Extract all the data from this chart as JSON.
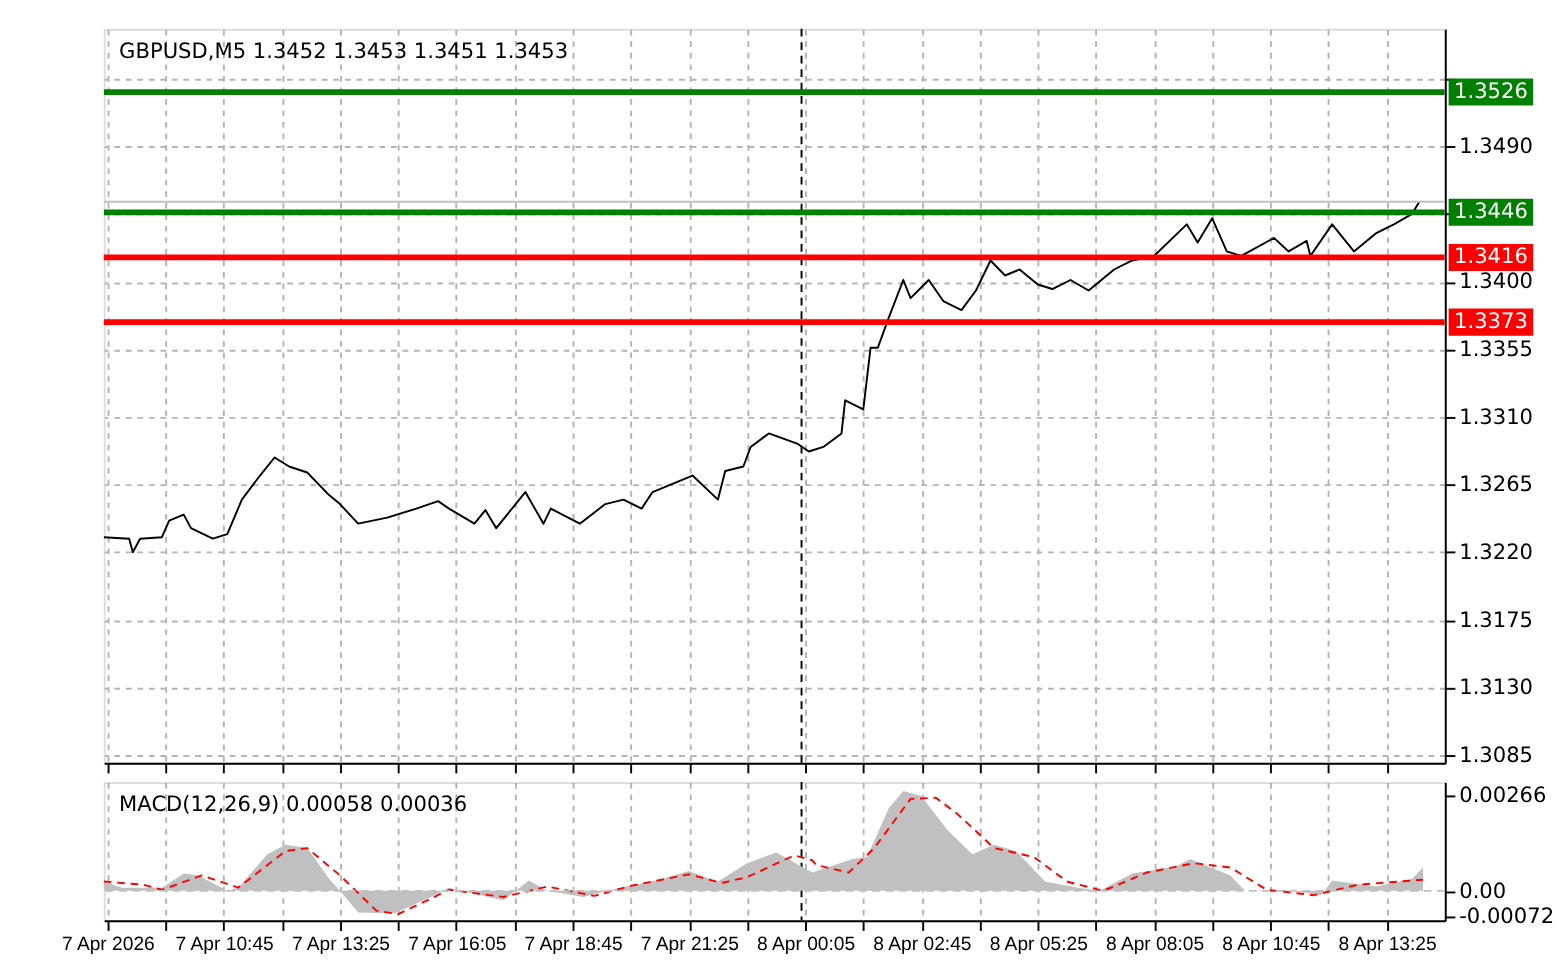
{
  "chart_data": [
    {
      "type": "line",
      "title": "GBPUSD,M5  1.3452 1.3453 1.3451 1.3453",
      "color": "#000000",
      "x": [
        "2026-04-07T08:00",
        "2026-04-07T08:35",
        "2026-04-07T08:40",
        "2026-04-07T08:50",
        "2026-04-07T09:20",
        "2026-04-07T09:30",
        "2026-04-07T09:50",
        "2026-04-07T10:00",
        "2026-04-07T10:30",
        "2026-04-07T10:50",
        "2026-04-07T11:10",
        "2026-04-07T11:35",
        "2026-04-07T11:55",
        "2026-04-07T12:15",
        "2026-04-07T12:40",
        "2026-04-07T13:10",
        "2026-04-07T13:25",
        "2026-04-07T13:50",
        "2026-04-07T14:30",
        "2026-04-07T15:10",
        "2026-04-07T15:40",
        "2026-04-07T15:55",
        "2026-04-07T16:30",
        "2026-04-07T16:45",
        "2026-04-07T17:00",
        "2026-04-07T17:40",
        "2026-04-07T18:05",
        "2026-04-07T18:15",
        "2026-04-07T18:55",
        "2026-04-07T19:30",
        "2026-04-07T19:55",
        "2026-04-07T20:20",
        "2026-04-07T20:35",
        "2026-04-07T21:15",
        "2026-04-07T21:30",
        "2026-04-07T22:05",
        "2026-04-07T22:15",
        "2026-04-07T22:40",
        "2026-04-07T22:50",
        "2026-04-07T23:15",
        "2026-04-07T23:55",
        "2026-04-08T00:10",
        "2026-04-08T00:30",
        "2026-04-08T00:55",
        "2026-04-08T01:00",
        "2026-04-08T01:25",
        "2026-04-08T01:35",
        "2026-04-08T01:45",
        "2026-04-08T02:00",
        "2026-04-08T02:20",
        "2026-04-08T02:30",
        "2026-04-08T02:55",
        "2026-04-08T03:15",
        "2026-04-08T03:40",
        "2026-04-08T04:00",
        "2026-04-08T04:20",
        "2026-04-08T04:40",
        "2026-04-08T05:00",
        "2026-04-08T05:25",
        "2026-04-08T05:45",
        "2026-04-08T06:10",
        "2026-04-08T06:35",
        "2026-04-08T07:10",
        "2026-04-08T07:35",
        "2026-04-08T08:05",
        "2026-04-08T08:50",
        "2026-04-08T09:05",
        "2026-04-08T09:25",
        "2026-04-08T09:45",
        "2026-04-08T10:05",
        "2026-04-08T10:50",
        "2026-04-08T11:10",
        "2026-04-08T11:35",
        "2026-04-08T11:40",
        "2026-04-08T12:10",
        "2026-04-08T12:40",
        "2026-04-08T13:10",
        "2026-04-08T13:35",
        "2026-04-08T14:00",
        "2026-04-08T14:10"
      ],
      "values": [
        1.323,
        1.3229,
        1.322,
        1.3229,
        1.323,
        1.3241,
        1.3245,
        1.3236,
        1.3229,
        1.3232,
        1.3255,
        1.3271,
        1.3283,
        1.3277,
        1.3273,
        1.3258,
        1.3252,
        1.3239,
        1.3243,
        1.3249,
        1.3254,
        1.3249,
        1.3239,
        1.3248,
        1.3236,
        1.326,
        1.3239,
        1.3249,
        1.3239,
        1.3252,
        1.3255,
        1.3249,
        1.326,
        1.3268,
        1.3271,
        1.3255,
        1.3274,
        1.3277,
        1.329,
        1.3299,
        1.3292,
        1.3287,
        1.329,
        1.3299,
        1.3321,
        1.3315,
        1.3356,
        1.3356,
        1.3376,
        1.3401,
        1.3389,
        1.3401,
        1.3387,
        1.3381,
        1.3394,
        1.3414,
        1.3404,
        1.3408,
        1.3398,
        1.3395,
        1.3401,
        1.3394,
        1.3408,
        1.3414,
        1.3417,
        1.3438,
        1.3426,
        1.3442,
        1.342,
        1.3417,
        1.3429,
        1.342,
        1.3427,
        1.3417,
        1.3438,
        1.342,
        1.3432,
        1.3438,
        1.3445,
        1.3453
      ],
      "xlim": [
        "2026-04-07T08:00",
        "2026-04-08T14:45"
      ],
      "xticks": [
        {
          "value": "2026-04-07T08:05",
          "label": null
        },
        {
          "value": "2026-04-07T09:25",
          "label": null
        },
        {
          "value": "2026-04-07T10:45",
          "label": null
        },
        {
          "value": "2026-04-07T12:05",
          "label": null
        },
        {
          "value": "2026-04-07T13:25",
          "label": null
        },
        {
          "value": "2026-04-07T14:45",
          "label": null
        },
        {
          "value": "2026-04-07T16:05",
          "label": null
        },
        {
          "value": "2026-04-07T17:25",
          "label": null
        },
        {
          "value": "2026-04-07T18:45",
          "label": null
        },
        {
          "value": "2026-04-07T20:05",
          "label": null
        },
        {
          "value": "2026-04-07T21:25",
          "label": null
        },
        {
          "value": "2026-04-07T22:45",
          "label": null
        },
        {
          "value": "2026-04-08T00:05",
          "label": null
        },
        {
          "value": "2026-04-08T01:25",
          "label": null
        },
        {
          "value": "2026-04-08T02:45",
          "label": null
        },
        {
          "value": "2026-04-08T04:05",
          "label": null
        },
        {
          "value": "2026-04-08T05:25",
          "label": null
        },
        {
          "value": "2026-04-08T06:45",
          "label": null
        },
        {
          "value": "2026-04-08T08:05",
          "label": null
        },
        {
          "value": "2026-04-08T09:25",
          "label": null
        },
        {
          "value": "2026-04-08T10:45",
          "label": null
        },
        {
          "value": "2026-04-08T12:05",
          "label": null
        },
        {
          "value": "2026-04-08T13:25",
          "label": null
        }
      ],
      "ylim": [
        1.308,
        1.3568
      ],
      "yticks": [
        1.3085,
        {
          "value": 1.313,
          "label": "1.3130"
        },
        1.3175,
        {
          "value": 1.322,
          "label": "1.3220"
        },
        1.3265,
        {
          "value": 1.331,
          "label": "1.3310"
        },
        1.3355,
        {
          "value": 1.34,
          "label": "1.3400"
        },
        {
          "value": 1.3445,
          "label": null
        },
        {
          "value": 1.349,
          "label": "1.3490"
        },
        {
          "value": 1.3535,
          "label": null
        }
      ],
      "grid": true,
      "tick_labels": "y",
      "ref_lines": [
        {
          "axis": "y",
          "value": 1.3526,
          "label": "1.3526",
          "color": "#008000"
        },
        {
          "axis": "y",
          "value": 1.3453,
          "label": null,
          "color": "#c0c0c0"
        },
        {
          "axis": "y",
          "value": 1.3446,
          "label": "1.3446",
          "color": "#008000"
        },
        {
          "axis": "y",
          "value": 1.3416,
          "label": "1.3416",
          "color": "#ff0000"
        },
        {
          "axis": "y",
          "value": 1.3373,
          "label": "1.3373",
          "color": "#ff0000"
        },
        {
          "axis": "x",
          "value": "2026-04-08T00:00",
          "label": null,
          "color": "#000000",
          "line_style": "dashed"
        }
      ]
    },
    {
      "type": "line",
      "title": "MACD(12,26,9) 0.00058 0.00036",
      "series": [
        {
          "type": "area",
          "color": "#c0c0c0",
          "x": [
            "2026-04-07T08:00",
            "2026-04-07T08:25",
            "2026-04-07T09:20",
            "2026-04-07T09:50",
            "2026-04-07T10:10",
            "2026-04-07T10:50",
            "2026-04-07T11:05",
            "2026-04-07T11:45",
            "2026-04-07T12:10",
            "2026-04-07T12:40",
            "2026-04-07T13:10",
            "2026-04-07T13:25",
            "2026-04-07T13:50",
            "2026-04-07T14:40",
            "2026-04-07T15:30",
            "2026-04-07T15:55",
            "2026-04-07T16:30",
            "2026-04-07T17:10",
            "2026-04-07T17:45",
            "2026-04-07T18:10",
            "2026-04-07T19:00",
            "2026-04-07T19:50",
            "2026-04-07T20:40",
            "2026-04-07T21:25",
            "2026-04-07T22:05",
            "2026-04-07T22:45",
            "2026-04-07T23:25",
            "2026-04-08T00:15",
            "2026-04-08T01:10",
            "2026-04-08T01:30",
            "2026-04-08T02:00",
            "2026-04-08T02:20",
            "2026-04-08T02:45",
            "2026-04-08T03:20",
            "2026-04-08T03:55",
            "2026-04-08T04:25",
            "2026-04-08T04:55",
            "2026-04-08T05:35",
            "2026-04-08T06:20",
            "2026-04-08T06:50",
            "2026-04-08T07:35",
            "2026-04-08T08:35",
            "2026-04-08T08:55",
            "2026-04-08T09:50",
            "2026-04-08T10:10",
            "2026-04-08T11:05",
            "2026-04-08T11:55",
            "2026-04-08T12:10",
            "2026-04-08T13:10",
            "2026-04-08T14:00",
            "2026-04-08T14:15"
          ],
          "values": [
            0.00026,
            9e-05,
            9e-05,
            0.00048,
            0.00043,
            0,
            9e-05,
            0.00102,
            0.00128,
            0.00119,
            0.00034,
            0,
            -0.0006,
            -0.00063,
            -0.00017,
            9e-05,
            -9e-05,
            -0.00026,
            0.00029,
            0,
            -0.00017,
            9e-05,
            0.00029,
            0.00055,
            0.00026,
            0.00077,
            0.00107,
            0.00051,
            0.00089,
            0.00094,
            0.0023,
            0.00278,
            0.00264,
            0.00171,
            0.00102,
            0.00128,
            0.00111,
            0.00026,
            9e-05,
            0,
            0.00048,
            0.00068,
            0.00089,
            0.00043,
            0,
            3e-05,
            -0.00012,
            0.00029,
            0.00012,
            0.00034,
            0.00065
          ]
        },
        {
          "type": "line",
          "color": "#ff0000",
          "line_style": "dashed",
          "x": [
            "2026-04-07T08:00",
            "2026-04-07T08:55",
            "2026-04-07T09:20",
            "2026-04-07T10:15",
            "2026-04-07T11:05",
            "2026-04-07T12:10",
            "2026-04-07T12:40",
            "2026-04-07T13:25",
            "2026-04-07T14:15",
            "2026-04-07T14:45",
            "2026-04-07T15:55",
            "2026-04-07T17:10",
            "2026-04-07T18:10",
            "2026-04-07T19:15",
            "2026-04-07T20:05",
            "2026-04-07T21:25",
            "2026-04-07T22:10",
            "2026-04-07T22:45",
            "2026-04-07T23:50",
            "2026-04-08T00:15",
            "2026-04-08T00:20",
            "2026-04-08T01:05",
            "2026-04-08T01:40",
            "2026-04-08T02:30",
            "2026-04-08T03:05",
            "2026-04-08T03:35",
            "2026-04-08T04:25",
            "2026-04-08T05:20",
            "2026-04-08T06:05",
            "2026-04-08T06:55",
            "2026-04-08T07:55",
            "2026-04-08T09:00",
            "2026-04-08T09:50",
            "2026-04-08T10:40",
            "2026-04-08T11:45",
            "2026-04-08T12:45",
            "2026-04-08T14:15"
          ],
          "values": [
            0.00026,
            0.00017,
            3e-05,
            0.00043,
            9e-05,
            0.00111,
            0.00119,
            0.00043,
            -0.00055,
            -0.00065,
            3e-05,
            -0.00017,
            0.00012,
            -0.00014,
            0.00014,
            0.00046,
            0.00022,
            0.00038,
            0.00099,
            0.00085,
            0.00072,
            0.00051,
            0.00119,
            0.00256,
            0.00259,
            0.00213,
            0.00119,
            0.00094,
            0.00026,
            0,
            0.00051,
            0.00077,
            0.00065,
            3e-05,
            -0.00012,
            0.00017,
            0.00031
          ]
        }
      ],
      "xlim": [
        "2026-04-07T08:00",
        "2026-04-08T14:45"
      ],
      "xticks": [
        {
          "value": "2026-04-07T08:05",
          "label": "7 Apr 2026"
        },
        {
          "value": "2026-04-07T09:25",
          "label": null
        },
        {
          "value": "2026-04-07T10:45",
          "label": "7 Apr 10:45"
        },
        {
          "value": "2026-04-07T12:05",
          "label": null
        },
        {
          "value": "2026-04-07T13:25",
          "label": "7 Apr 13:25"
        },
        {
          "value": "2026-04-07T14:45",
          "label": null
        },
        {
          "value": "2026-04-07T16:05",
          "label": "7 Apr 16:05"
        },
        {
          "value": "2026-04-07T17:25",
          "label": null
        },
        {
          "value": "2026-04-07T18:45",
          "label": "7 Apr 18:45"
        },
        {
          "value": "2026-04-07T20:05",
          "label": null
        },
        {
          "value": "2026-04-07T21:25",
          "label": "7 Apr 21:25"
        },
        {
          "value": "2026-04-07T22:45",
          "label": null
        },
        {
          "value": "2026-04-08T00:05",
          "label": "8 Apr 00:05"
        },
        {
          "value": "2026-04-08T01:25",
          "label": null
        },
        {
          "value": "2026-04-08T02:45",
          "label": "8 Apr 02:45"
        },
        {
          "value": "2026-04-08T04:05",
          "label": null
        },
        {
          "value": "2026-04-08T05:25",
          "label": "8 Apr 05:25"
        },
        {
          "value": "2026-04-08T06:45",
          "label": null
        },
        {
          "value": "2026-04-08T08:05",
          "label": "8 Apr 08:05"
        },
        {
          "value": "2026-04-08T09:25",
          "label": null
        },
        {
          "value": "2026-04-08T10:45",
          "label": "8 Apr 10:45"
        },
        {
          "value": "2026-04-08T12:05",
          "label": null
        },
        {
          "value": "2026-04-08T13:25",
          "label": "8 Apr 13:25"
        }
      ],
      "ylim": [
        -0.00082,
        0.00303
      ],
      "yticks": [
        0.00266,
        {
          "value": 0,
          "label": "0.00"
        },
        -0.00072
      ],
      "grid": "x",
      "ref_lines": [
        {
          "axis": "y",
          "value": 0,
          "label": null,
          "color": "#c0c0c0",
          "line_style": "dashed"
        },
        {
          "axis": "x",
          "value": "2026-04-08T00:00",
          "label": null,
          "color": "#000000",
          "line_style": "dashed"
        }
      ]
    }
  ]
}
